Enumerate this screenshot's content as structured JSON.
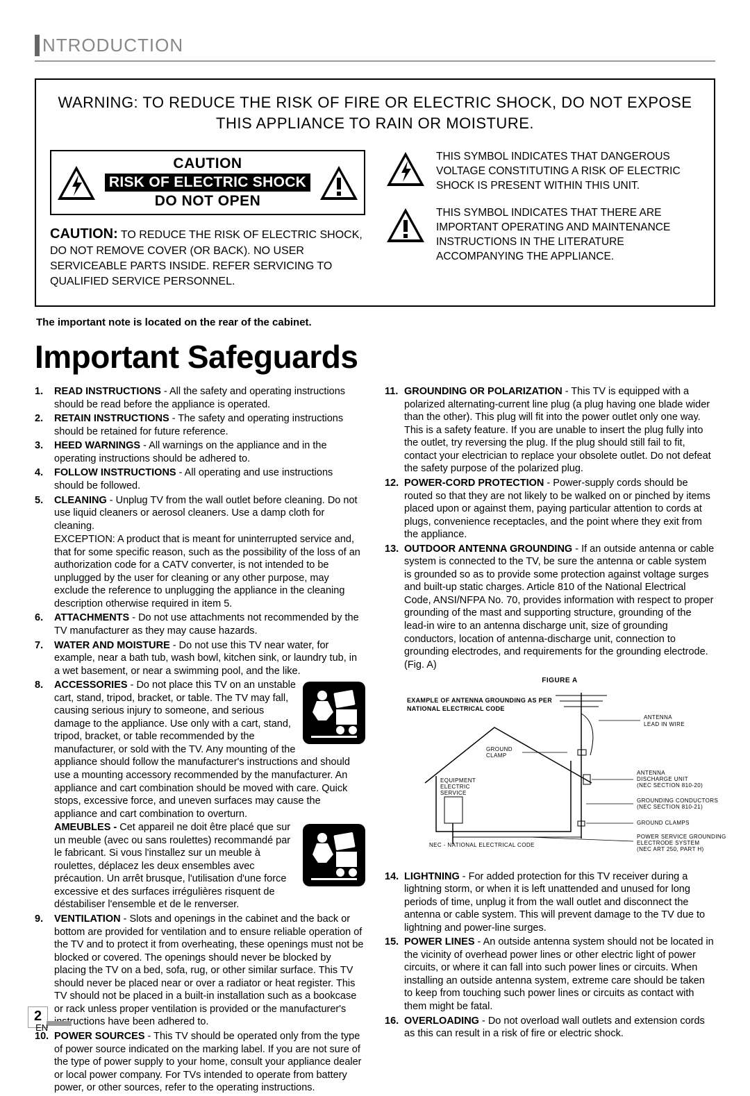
{
  "header": {
    "section_title": "NTRODUCTION"
  },
  "warning_box": {
    "top_warning": "WARNING: TO REDUCE THE RISK OF FIRE OR ELECTRIC SHOCK, DO NOT EXPOSE THIS APPLIANCE TO RAIN OR MOISTURE.",
    "caution": {
      "line1": "CAUTION",
      "line2": "RISK OF ELECTRIC SHOCK",
      "line3": "DO NOT OPEN",
      "bold_lead": "CAUTION:",
      "para": " TO REDUCE THE RISK OF ELECTRIC SHOCK, DO NOT REMOVE COVER (OR BACK). NO USER SERVICEABLE PARTS INSIDE. REFER SERVICING TO QUALIFIED SERVICE PERSONNEL."
    },
    "symbol_bolt": "THIS SYMBOL INDICATES THAT DANGEROUS VOLTAGE CONSTITUTING A RISK OF ELECTRIC SHOCK IS PRESENT WITHIN THIS UNIT.",
    "symbol_excl": "THIS SYMBOL INDICATES THAT THERE ARE IMPORTANT OPERATING AND MAINTENANCE INSTRUCTIONS IN THE LITERATURE ACCOMPANYING THE APPLIANCE."
  },
  "rear_note": "The important note is located on the rear of the cabinet.",
  "main_heading": "Important Safeguards",
  "items_left": [
    {
      "n": "1.",
      "b": "READ INSTRUCTIONS",
      "t": " - All the safety and operating instructions should be read before the appliance is operated."
    },
    {
      "n": "2.",
      "b": "RETAIN INSTRUCTIONS",
      "t": " - The safety and operating instructions should be retained for future reference."
    },
    {
      "n": "3.",
      "b": "HEED WARNINGS",
      "t": " - All warnings on the appliance and in the operating instructions should be adhered to."
    },
    {
      "n": "4.",
      "b": "FOLLOW INSTRUCTIONS",
      "t": " - All operating and use instructions should be followed."
    },
    {
      "n": "5.",
      "b": "CLEANING",
      "t": " - Unplug TV from the wall outlet before cleaning. Do not use liquid cleaners or aerosol cleaners. Use a damp cloth for cleaning.",
      "extra": "EXCEPTION: A product that is meant for uninterrupted service and, that for some specific reason, such as the possibility of the loss of an authorization code for a CATV converter, is not intended to be unplugged by the user for cleaning or any other purpose, may exclude the reference to unplugging the appliance in the cleaning description otherwise required in item 5."
    },
    {
      "n": "6.",
      "b": "ATTACHMENTS",
      "t": " - Do not use attachments not recommended by the TV manufacturer as they may cause hazards."
    },
    {
      "n": "7.",
      "b": "WATER AND MOISTURE",
      "t": " - Do not use this TV near water, for example, near a bath tub, wash bowl, kitchen sink, or laundry tub, in a wet basement, or near a swimming pool, and the like."
    },
    {
      "n": "8.",
      "b": "ACCESSORIES",
      "t": " - Do not place this TV on an unstable cart, stand, tripod, bracket, or table. The TV may fall, causing serious injury to someone, and serious damage to the appliance. Use only with a cart, stand, tripod, bracket, or table recommended by the manufacturer, or sold with the TV. Any mounting of the appliance should follow the manufacturer's instructions and should use a mounting accessory recommended by the manufacturer. An appliance and cart combination should be moved with care. Quick stops, excessive force, and uneven surfaces may cause the appliance and cart combination to overturn.",
      "extra_b": "AMEUBLES - ",
      "extra": "Cet appareil ne doit être placé que sur un meuble (avec ou sans roulettes) recommandé par le fabricant. Si vous l'installez sur un meuble à roulettes, déplacez les deux ensembles avec précaution. Un arrêt brusque, l'utilisation d'une force excessive et des surfaces irrégulières risquent de déstabiliser l'ensemble et de le renverser.",
      "fig1": true,
      "fig2": true
    },
    {
      "n": "9.",
      "b": "VENTILATION",
      "t": " - Slots and openings in the cabinet and the back or bottom are provided for ventilation and to ensure reliable operation of the TV and to protect it from overheating, these openings must not be blocked or covered. The openings should never be blocked by placing the TV on a bed, sofa, rug, or other similar surface. This TV should never be placed near or over a radiator or heat register. This TV should not be placed in a built-in installation such as a bookcase or rack unless proper ventilation is provided or the manufacturer's instructions have been adhered to."
    },
    {
      "n": "10.",
      "b": "POWER SOURCES",
      "t": " - This TV should be operated only from the type of power source indicated on the marking label. If you are not sure of the type of power supply to your home, consult your appliance dealer or local power company. For TVs intended to operate from battery power, or other sources, refer to the operating instructions."
    }
  ],
  "items_right": [
    {
      "n": "11.",
      "b": "GROUNDING OR POLARIZATION",
      "t": " - This TV is equipped with a polarized alternating-current line plug (a plug having one blade wider than the other). This plug will fit into the power outlet only one way. This is a safety feature. If you are unable to insert the plug fully into the outlet, try reversing the plug. If the plug should still fail to fit, contact your electrician to replace your obsolete outlet. Do not defeat the safety purpose of the polarized plug."
    },
    {
      "n": "12.",
      "b": "POWER-CORD PROTECTION",
      "t": " - Power-supply cords should be routed so that they are not likely to be walked on or pinched by items placed upon or against them, paying particular attention to cords at plugs, convenience receptacles, and the point where they exit from the appliance."
    },
    {
      "n": "13.",
      "b": "OUTDOOR ANTENNA GROUNDING",
      "t": " - If an outside antenna or cable system is connected to the TV, be sure the antenna or cable system is grounded so as to provide some protection against voltage surges and built-up static charges. Article 810 of the National Electrical Code, ANSI/NFPA No. 70, provides information with respect to proper grounding of the mast and supporting structure, grounding of the lead-in wire to an antenna discharge unit, size of grounding conductors, location of antenna-discharge unit, connection to grounding electrodes, and requirements for the grounding electrode. (Fig. A)",
      "figA": true
    },
    {
      "n": "14.",
      "b": "LIGHTNING",
      "t": " - For added protection for this TV receiver during a lightning storm, or when it is left unattended and unused for long periods of time, unplug it from the wall outlet and disconnect the antenna or cable system. This will prevent damage to the TV due to lightning and power-line surges."
    },
    {
      "n": "15.",
      "b": "POWER LINES",
      "t": " - An outside antenna system should not be located in the vicinity of overhead power lines or other electric light of power circuits, or where it can fall into such power lines or circuits. When installing an outside antenna system, extreme care should be taken to keep from touching such power lines or circuits as contact with them might be fatal."
    },
    {
      "n": "16.",
      "b": "OVERLOADING",
      "t": " - Do not overload wall outlets and extension cords as this can result in a risk of fire or electric shock."
    }
  ],
  "figA": {
    "title": "FIGURE A",
    "subtitle": "EXAMPLE OF ANTENNA GROUNDING AS PER NATIONAL ELECTRICAL CODE",
    "labels": {
      "antenna_lead": "ANTENNA\nLEAD IN WIRE",
      "ground_clamp": "GROUND\nCLAMP",
      "discharge": "ANTENNA\nDISCHARGE UNIT\n(NEC SECTION 810-20)",
      "electric_svc": "ELECTRIC\nSERVICE\nEQUIPMENT",
      "conductors": "GROUNDING CONDUCTORS\n(NEC SECTION 810-21)",
      "clamps": "GROUND CLAMPS",
      "electrode": "POWER SERVICE GROUNDING\nELECTRODE SYSTEM\n(NEC ART 250, PART H)",
      "nec": "NEC - NATIONAL ELECTRICAL CODE"
    }
  },
  "page": {
    "num": "2",
    "lang": "EN"
  },
  "style": {
    "colors": {
      "accent_gray": "#999999",
      "text": "#000000",
      "bg": "#ffffff",
      "title_gray": "#888888"
    },
    "font_sizes": {
      "section": 26,
      "warning": 22,
      "body": 14.5,
      "heading": 46
    }
  }
}
